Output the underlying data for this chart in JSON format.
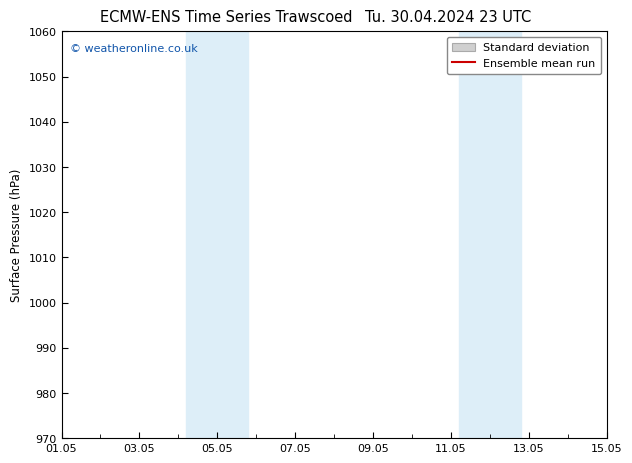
{
  "title_left": "ECMW-ENS Time Series Trawscoed",
  "title_right": "Tu. 30.04.2024 23 UTC",
  "ylabel": "Surface Pressure (hPa)",
  "ylim": [
    970,
    1060
  ],
  "yticks": [
    970,
    980,
    990,
    1000,
    1010,
    1020,
    1030,
    1040,
    1050,
    1060
  ],
  "xlim_start": 0,
  "xlim_end": 14,
  "xtick_positions": [
    0,
    2,
    4,
    6,
    8,
    10,
    12,
    14
  ],
  "xtick_labels": [
    "01.05",
    "03.05",
    "05.05",
    "07.05",
    "09.05",
    "11.05",
    "13.05",
    "15.05"
  ],
  "shaded_bands": [
    {
      "xmin": 3.2,
      "xmax": 4.8
    },
    {
      "xmin": 10.2,
      "xmax": 11.8
    }
  ],
  "band_color": "#ddeef8",
  "band_alpha": 1.0,
  "watermark": "© weatheronline.co.uk",
  "watermark_color": "#1155aa",
  "legend_std_color": "#d0d0d0",
  "legend_mean_color": "#cc0000",
  "background_color": "#ffffff",
  "plot_bg_color": "#ffffff",
  "title_fontsize": 10.5,
  "axis_fontsize": 8.5,
  "tick_fontsize": 8,
  "legend_fontsize": 8
}
